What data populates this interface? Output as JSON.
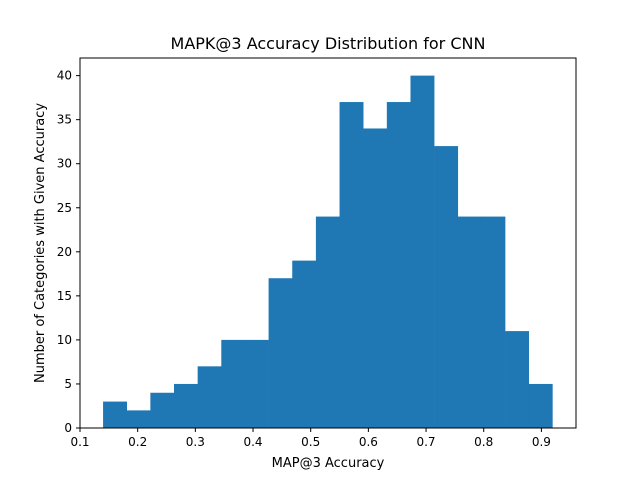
{
  "chart_data": {
    "type": "bar",
    "subtype": "histogram",
    "title": "MAPK@3 Accuracy Distribution for CNN",
    "xlabel": "MAP@3 Accuracy",
    "ylabel": "Number of Categories with Given Accuracy",
    "xlim": [
      0.1,
      0.96
    ],
    "ylim": [
      0,
      42
    ],
    "xticks": [
      "0.1",
      "0.2",
      "0.3",
      "0.4",
      "0.5",
      "0.6",
      "0.7",
      "0.8",
      "0.9"
    ],
    "yticks": [
      "0",
      "5",
      "10",
      "15",
      "20",
      "25",
      "30",
      "35",
      "40"
    ],
    "bin_edges": [
      0.14,
      0.181,
      0.222,
      0.263,
      0.304,
      0.345,
      0.386,
      0.427,
      0.468,
      0.509,
      0.55,
      0.591,
      0.632,
      0.673,
      0.714,
      0.755,
      0.796,
      0.837,
      0.878,
      0.919
    ],
    "values": [
      3,
      2,
      4,
      5,
      7,
      10,
      10,
      17,
      19,
      24,
      37,
      34,
      37,
      40,
      32,
      24,
      24,
      11,
      5
    ],
    "bar_color": "#1f77b4",
    "grid": false
  }
}
